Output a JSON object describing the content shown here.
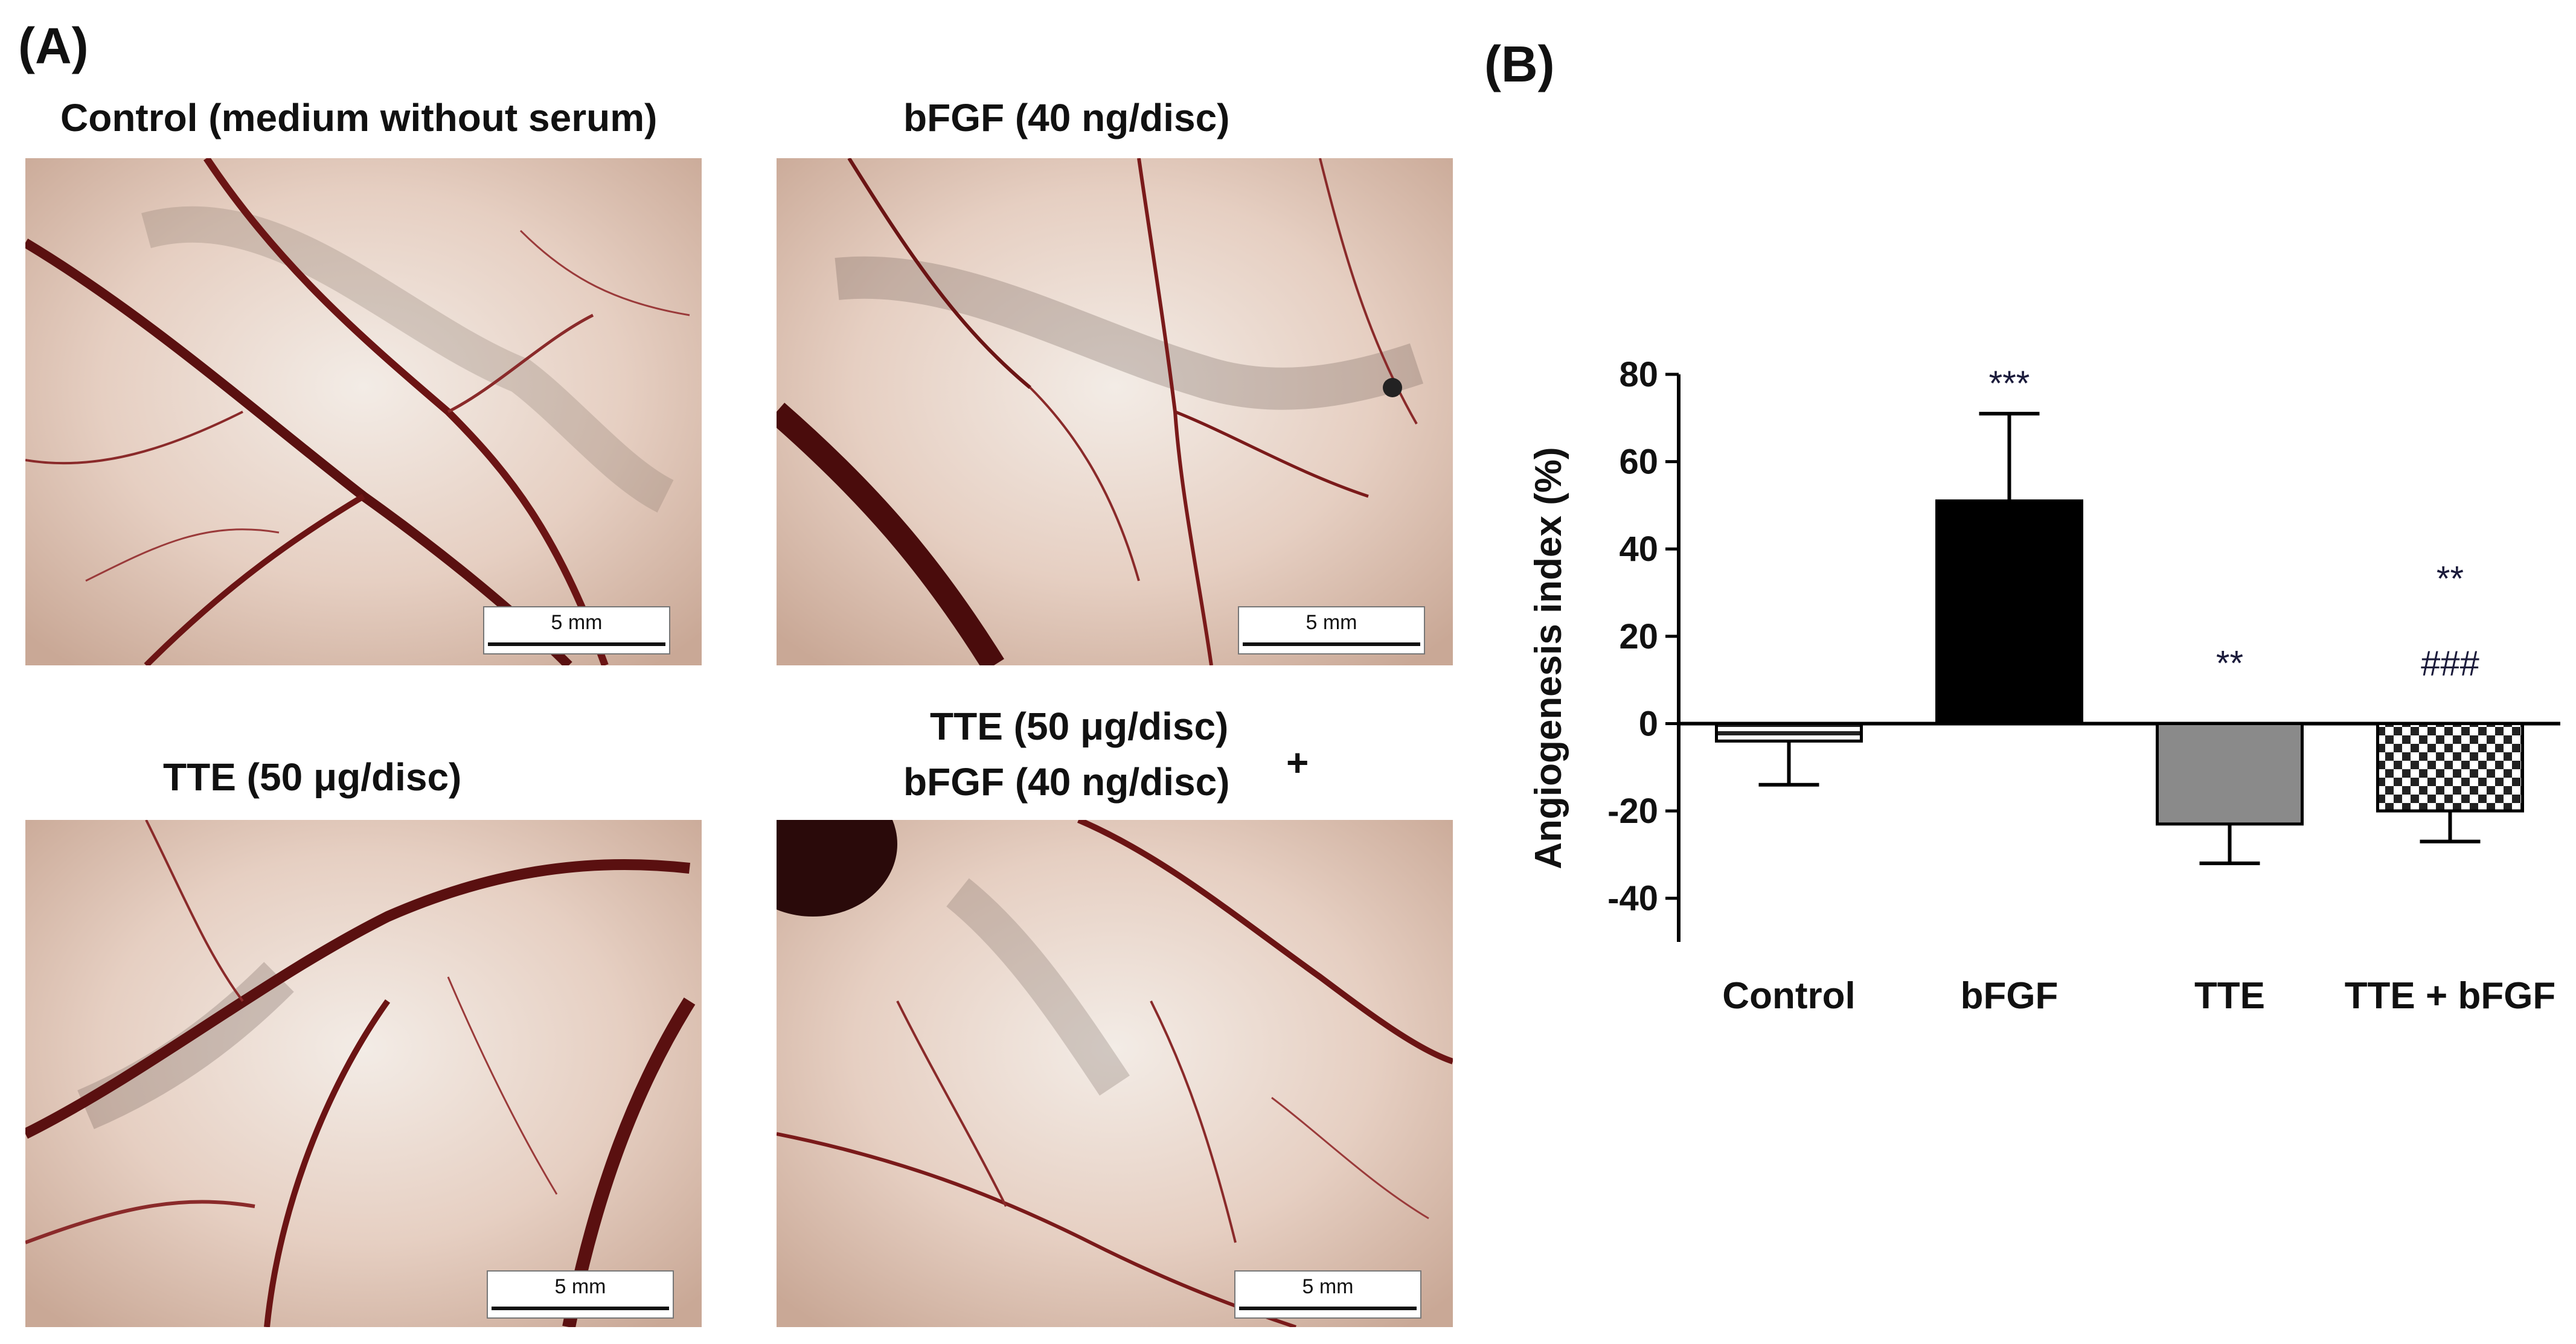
{
  "panel_a": {
    "letter": "(A)",
    "captions": {
      "control": "Control (medium without serum)",
      "bfgf": "bFGF (40 ng/disc)",
      "tte": "TTE (50 μg/disc)",
      "combo_line1": "TTE (50 μg/disc)",
      "combo_line2": "bFGF (40 ng/disc)",
      "combo_plus": "+"
    },
    "scale_bar_label": "5 mm"
  },
  "panel_b": {
    "letter": "(B)"
  },
  "chart_data": {
    "type": "bar",
    "categories": [
      "Control",
      "bFGF",
      "TTE",
      "TTE + bFGF"
    ],
    "values": [
      -4,
      51,
      -23,
      -20
    ],
    "error_bars": [
      10,
      20,
      9,
      7
    ],
    "ylabel": "Angiogenesis index (%)",
    "xlabel": "",
    "ylim": [
      -50,
      80
    ],
    "yticks": [
      -40,
      -20,
      0,
      20,
      40,
      60,
      80
    ],
    "grid": false,
    "bar_fills": [
      "horizontal-stripes-white",
      "black",
      "gray",
      "checkerboard"
    ],
    "bar_colors": [
      "#ffffff",
      "#000000",
      "#8a8a8a",
      "#555555"
    ],
    "annotations": [
      {
        "category": "bFGF",
        "text": "***"
      },
      {
        "category": "TTE",
        "text": "**"
      },
      {
        "category": "TTE + bFGF",
        "text": "###"
      },
      {
        "category": "TTE + bFGF",
        "text": "**"
      }
    ]
  }
}
